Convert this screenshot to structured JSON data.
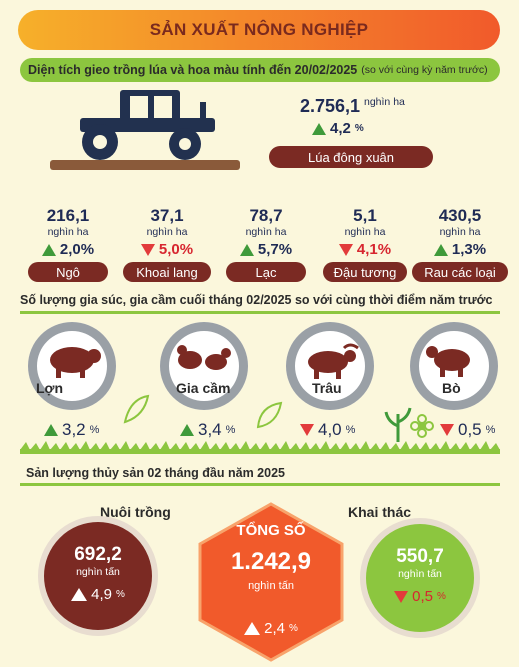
{
  "title": "SẢN XUẤT NÔNG NGHIỆP",
  "section1": {
    "heading_main": "Diện tích gieo trồng lúa và hoa màu tính đến 20/02/2025",
    "heading_note": "(so với cùng kỳ năm trước)",
    "rice": {
      "value": "2.756,1",
      "unit": "nghìn ha",
      "pct": "4,2",
      "pct_sym": "%",
      "label": "Lúa đông xuân",
      "direction": "up"
    },
    "crops": [
      {
        "value": "216,1",
        "unit": "nghìn ha",
        "pct": "2,0%",
        "direction": "up",
        "label": "Ngô"
      },
      {
        "value": "37,1",
        "unit": "nghìn ha",
        "pct": "5,0%",
        "direction": "down",
        "label": "Khoai lang"
      },
      {
        "value": "78,7",
        "unit": "nghìn ha",
        "pct": "5,7%",
        "direction": "up",
        "label": "Lạc"
      },
      {
        "value": "5,1",
        "unit": "nghìn ha",
        "pct": "4,1%",
        "direction": "down",
        "label": "Đậu tương"
      },
      {
        "value": "430,5",
        "unit": "nghìn ha",
        "pct": "1,3%",
        "direction": "up",
        "label": "Rau các loại"
      }
    ]
  },
  "section2": {
    "heading": "Số lượng gia súc, gia cầm cuối tháng 02/2025 so với cùng thời điểm năm trước",
    "animals": [
      {
        "name": "Lợn",
        "pct": "3,2",
        "sym": "%",
        "direction": "up",
        "icon": "pig-icon"
      },
      {
        "name": "Gia cầm",
        "pct": "3,4",
        "sym": "%",
        "direction": "up",
        "icon": "poultry-icon"
      },
      {
        "name": "Trâu",
        "pct": "4,0",
        "sym": "%",
        "direction": "down",
        "icon": "buffalo-icon"
      },
      {
        "name": "Bò",
        "pct": "0,5",
        "sym": "%",
        "direction": "down",
        "icon": "cow-icon"
      }
    ]
  },
  "section3": {
    "heading": "Sản lượng thủy sản 02 tháng đầu năm 2025",
    "aquaculture": {
      "label": "Nuôi trồng",
      "value": "692,2",
      "unit": "nghìn tấn",
      "pct": "4,9",
      "sym": "%",
      "direction": "up"
    },
    "total": {
      "label": "TỔNG SỐ",
      "value": "1.242,9",
      "unit": "nghìn tấn",
      "pct": "2,4",
      "sym": "%",
      "direction": "up"
    },
    "capture": {
      "label": "Khai thác",
      "value": "550,7",
      "unit": "nghìn tấn",
      "pct": "0,5",
      "sym": "%",
      "direction": "down"
    }
  },
  "colors": {
    "brown": "#7b2a23",
    "green": "#8cc63f",
    "orange": "#f15a2b",
    "navy": "#1f2b55",
    "up": "#3f9a3a",
    "down": "#e23b3b"
  }
}
